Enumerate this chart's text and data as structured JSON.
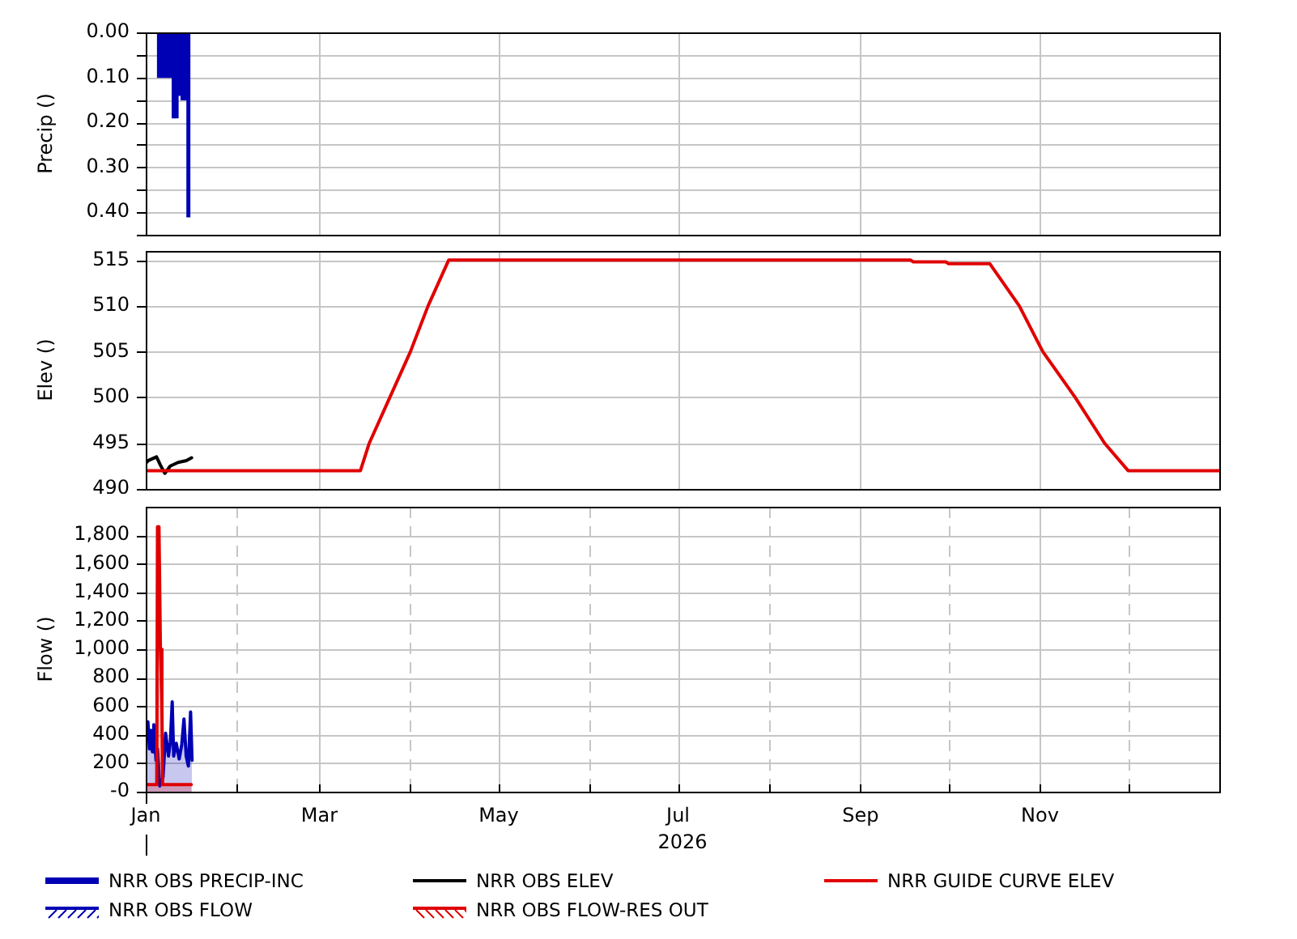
{
  "chart_data": [
    {
      "type": "bar",
      "ylabel": "Precip ()",
      "x": [
        "2026-01-05T12:00",
        "2026-01-06T12:00",
        "2026-01-07T12:00",
        "2026-01-08T12:00",
        "2026-01-09T12:00",
        "2026-01-10T12:00",
        "2026-01-11T12:00",
        "2026-01-12T12:00",
        "2026-01-13T12:00",
        "2026-01-14T12:00",
        "2026-01-15T12:00"
      ],
      "series": [
        {
          "name": "NRR OBS PRECIP-INC",
          "color": "#0000b4",
          "values": [
            0.1,
            0.1,
            0.1,
            0.1,
            0.1,
            0.19,
            0.19,
            0.14,
            0.15,
            0.15,
            0.41
          ]
        }
      ],
      "xlim": [
        "2026-01-01",
        "2027-01-01"
      ],
      "xticks": [
        {
          "value": "2026-01-01",
          "label": null
        },
        {
          "value": "2026-03-01",
          "label": null
        },
        {
          "value": "2026-05-01",
          "label": null
        },
        {
          "value": "2026-07-01",
          "label": null
        },
        {
          "value": "2026-09-01",
          "label": null
        },
        {
          "value": "2026-11-01",
          "label": null
        }
      ],
      "ylim": [
        0.45,
        0
      ],
      "yticks": [
        {
          "value": 0,
          "label": "0.00"
        },
        {
          "value": 0.05,
          "label": null
        },
        {
          "value": 0.1,
          "label": "0.10"
        },
        {
          "value": 0.15,
          "label": null
        },
        {
          "value": 0.2,
          "label": "0.20"
        },
        {
          "value": 0.25,
          "label": null
        },
        {
          "value": 0.3,
          "label": "0.30"
        },
        {
          "value": 0.35,
          "label": null
        },
        {
          "value": 0.4,
          "label": "0.40"
        },
        {
          "value": 0.45,
          "label": null
        }
      ],
      "tick_labels": "y",
      "grid": true,
      "legend": "bottom"
    },
    {
      "type": "line",
      "ylabel": "Elev ()",
      "series": [
        {
          "name": "NRR OBS ELEV",
          "color": "#000000",
          "x": [
            "2026-01-01T00:00",
            "2026-01-01T22:00",
            "2026-01-04T16:00",
            "2026-01-06T00:00",
            "2026-01-07T12:00",
            "2026-01-09T08:00",
            "2026-01-12T00:00",
            "2026-01-14T20:00",
            "2026-01-16T14:00"
          ],
          "values": [
            492.8,
            493.1,
            493.5,
            492.6,
            491.7,
            492.5,
            492.9,
            493.1,
            493.4
          ]
        },
        {
          "name": "NRR GUIDE CURVE ELEV",
          "color": "#e00000",
          "x": [
            "2026-01-01",
            "2026-03-15",
            "2026-03-18",
            "2026-03-25",
            "2026-04-01",
            "2026-04-07",
            "2026-04-14",
            "2026-09-18",
            "2026-09-19",
            "2026-09-30",
            "2026-10-01",
            "2026-10-15",
            "2026-10-25",
            "2026-11-02",
            "2026-11-13",
            "2026-11-23",
            "2026-12-01",
            "2027-01-01"
          ],
          "values": [
            492,
            492,
            495,
            500,
            505,
            510,
            515,
            515,
            514.8,
            514.8,
            514.6,
            514.6,
            510,
            505,
            500,
            495,
            492,
            492
          ]
        }
      ],
      "xlim": [
        "2026-01-01",
        "2027-01-01"
      ],
      "xticks": [
        {
          "value": "2026-01-01",
          "label": null
        },
        {
          "value": "2026-03-01",
          "label": null
        },
        {
          "value": "2026-05-01",
          "label": null
        },
        {
          "value": "2026-07-01",
          "label": null
        },
        {
          "value": "2026-09-01",
          "label": null
        },
        {
          "value": "2026-11-01",
          "label": null
        }
      ],
      "ylim": [
        490,
        516
      ],
      "yticks": [
        490,
        495,
        500,
        505,
        510,
        515
      ],
      "tick_labels": "y",
      "grid": true,
      "legend": "bottom"
    },
    {
      "type": "area",
      "ylabel": "Flow ()",
      "xlabel": "2026",
      "series": [
        {
          "name": "NRR OBS FLOW",
          "color": "#0000b4",
          "x": [
            "2026-01-01T00:00",
            "2026-01-01T18:00",
            "2026-01-02T06:00",
            "2026-01-02T18:00",
            "2026-01-03T06:00",
            "2026-01-03T18:00",
            "2026-01-04T12:00",
            "2026-01-05T00:00",
            "2026-01-05T18:00",
            "2026-01-06T21:00",
            "2026-01-07T18:00",
            "2026-01-08T18:00",
            "2026-01-09T09:00",
            "2026-01-10T00:00",
            "2026-01-10T12:00",
            "2026-01-11T09:00",
            "2026-01-12T09:00",
            "2026-01-13T06:00",
            "2026-01-14T00:00",
            "2026-01-14T18:00",
            "2026-01-15T12:00",
            "2026-01-16T06:00",
            "2026-01-16T18:00"
          ],
          "values": [
            440,
            490,
            300,
            430,
            280,
            470,
            220,
            300,
            40,
            100,
            410,
            250,
            350,
            630,
            250,
            340,
            230,
            330,
            510,
            250,
            180,
            560,
            220
          ]
        },
        {
          "name": "NRR OBS FLOW-RES OUT",
          "color": "#e00000",
          "x": [
            "2026-01-01T00:00",
            "2026-01-04T18:00",
            "2026-01-05T00:00",
            "2026-01-05T12:00",
            "2026-01-06T00:00",
            "2026-01-06T12:00",
            "2026-01-06T18:00",
            "2026-01-16T12:00"
          ],
          "values": [
            50,
            50,
            1860,
            1860,
            1000,
            600,
            50,
            50
          ]
        }
      ],
      "xlim": [
        "2026-01-01",
        "2027-01-01"
      ],
      "xticks": [
        {
          "value": "2026-01-01",
          "label": "Jan"
        },
        {
          "value": "2026-02-01",
          "label": null
        },
        {
          "value": "2026-03-01",
          "label": "Mar"
        },
        {
          "value": "2026-04-01",
          "label": null
        },
        {
          "value": "2026-05-01",
          "label": "May"
        },
        {
          "value": "2026-06-01",
          "label": null
        },
        {
          "value": "2026-07-01",
          "label": "Jul"
        },
        {
          "value": "2026-08-01",
          "label": null
        },
        {
          "value": "2026-09-01",
          "label": "Sep"
        },
        {
          "value": "2026-10-01",
          "label": null
        },
        {
          "value": "2026-11-01",
          "label": "Nov"
        },
        {
          "value": "2026-12-01",
          "label": null
        }
      ],
      "ylim": [
        0,
        2000
      ],
      "yticks": [
        {
          "value": 0,
          "label": "-0"
        },
        200,
        400,
        600,
        800,
        {
          "value": 1000,
          "label": "1,000"
        },
        {
          "value": 1200,
          "label": "1,200"
        },
        {
          "value": 1400,
          "label": "1,400"
        },
        {
          "value": 1600,
          "label": "1,600"
        },
        {
          "value": 1800,
          "label": "1,800"
        }
      ],
      "grid": true,
      "legend": "bottom"
    }
  ]
}
